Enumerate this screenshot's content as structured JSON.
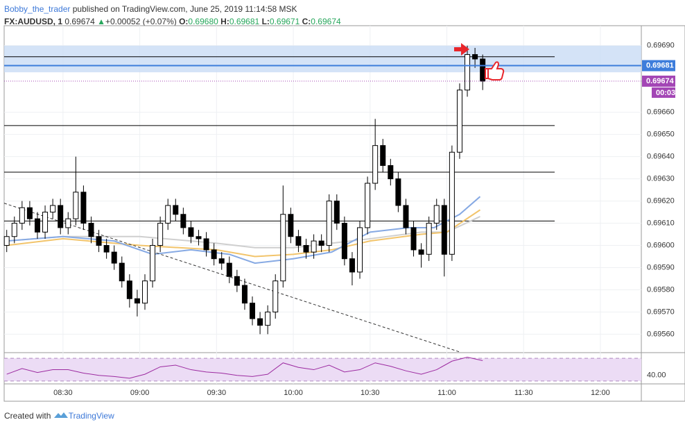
{
  "header": {
    "author": "Bobby_the_trader",
    "published": "published on TradingView.com, June 25, 2019 11:14:58 MSK",
    "symbol": "FX:AUDUSD, 1",
    "last": "0.69674",
    "change_arrow": "▲",
    "change": "+0.00052 (+0.07%)",
    "o_label": "O:",
    "o": "0.69680",
    "h_label": "H:",
    "h": "0.69681",
    "l_label": "L:",
    "l": "0.69671",
    "c_label": "C:",
    "c": "0.69674"
  },
  "footer": {
    "created": "Created with",
    "brand": "TradingView"
  },
  "chart_data": {
    "type": "candlestick",
    "xlim": [
      "08:07",
      "12:16"
    ],
    "ylim": [
      0.69552,
      0.69699
    ],
    "xticks": [
      "08:30",
      "09:00",
      "09:30",
      "10:00",
      "10:30",
      "11:00",
      "11:30",
      "12:00"
    ],
    "yticks": [
      {
        "value": 0.6956,
        "label": "0.69560"
      },
      {
        "value": 0.6957,
        "label": "0.69570"
      },
      {
        "value": 0.6958,
        "label": "0.69580"
      },
      {
        "value": 0.6959,
        "label": "0.69590"
      },
      {
        "value": 0.696,
        "label": "0.69600"
      },
      {
        "value": 0.6961,
        "label": "0.69610"
      },
      {
        "value": 0.6962,
        "label": "0.69620"
      },
      {
        "value": 0.6963,
        "label": "0.69630"
      },
      {
        "value": 0.6964,
        "label": "0.69640"
      },
      {
        "value": 0.6965,
        "label": "0.69650"
      },
      {
        "value": 0.6966,
        "label": "0.69660"
      },
      {
        "value": 0.6969,
        "label": "0.69690"
      }
    ],
    "grid": true,
    "x": [
      "08:08",
      "08:11",
      "08:14",
      "08:17",
      "08:20",
      "08:23",
      "08:26",
      "08:29",
      "08:32",
      "08:35",
      "08:38",
      "08:41",
      "08:44",
      "08:47",
      "08:50",
      "08:53",
      "08:56",
      "08:59",
      "09:02",
      "09:05",
      "09:08",
      "09:11",
      "09:14",
      "09:17",
      "09:20",
      "09:23",
      "09:26",
      "09:29",
      "09:32",
      "09:35",
      "09:38",
      "09:41",
      "09:44",
      "09:47",
      "09:50",
      "09:53",
      "09:56",
      "09:59",
      "10:02",
      "10:05",
      "10:08",
      "10:11",
      "10:14",
      "10:17",
      "10:20",
      "10:23",
      "10:26",
      "10:29",
      "10:32",
      "10:35",
      "10:38",
      "10:41",
      "10:44",
      "10:47",
      "10:50",
      "10:53",
      "10:56",
      "10:59",
      "11:02",
      "11:05",
      "11:08",
      "11:11",
      "11:14"
    ],
    "open": [
      0.696,
      0.69604,
      0.6961,
      0.69617,
      0.69612,
      0.69606,
      0.69615,
      0.69618,
      0.69608,
      0.69612,
      0.69624,
      0.6961,
      0.69604,
      0.696,
      0.69597,
      0.69592,
      0.69584,
      0.69576,
      0.69574,
      0.69584,
      0.696,
      0.6961,
      0.69618,
      0.69614,
      0.69608,
      0.69604,
      0.69603,
      0.69598,
      0.69594,
      0.69592,
      0.69586,
      0.69582,
      0.69574,
      0.69567,
      0.69564,
      0.6957,
      0.69584,
      0.69614,
      0.69604,
      0.696,
      0.69597,
      0.69602,
      0.696,
      0.6962,
      0.6961,
      0.69594,
      0.69588,
      0.69608,
      0.69628,
      0.69645,
      0.69636,
      0.6963,
      0.69618,
      0.69608,
      0.69598,
      0.69596,
      0.6961,
      0.69618,
      0.69596,
      0.69642,
      0.6967,
      0.69686,
      0.69684
    ],
    "high": [
      0.69607,
      0.69613,
      0.6962,
      0.6962,
      0.69615,
      0.69618,
      0.69621,
      0.69621,
      0.69615,
      0.6964,
      0.69627,
      0.69613,
      0.69607,
      0.69603,
      0.696,
      0.69595,
      0.69587,
      0.6958,
      0.69587,
      0.69603,
      0.69613,
      0.69621,
      0.69621,
      0.69617,
      0.69611,
      0.69607,
      0.69606,
      0.69601,
      0.69597,
      0.69595,
      0.69589,
      0.69585,
      0.69577,
      0.6957,
      0.69573,
      0.69587,
      0.69627,
      0.69617,
      0.69607,
      0.69603,
      0.69605,
      0.69605,
      0.69623,
      0.69623,
      0.69613,
      0.69597,
      0.69611,
      0.69631,
      0.69657,
      0.69648,
      0.69639,
      0.69633,
      0.69621,
      0.69611,
      0.69601,
      0.69613,
      0.69621,
      0.69621,
      0.69645,
      0.69673,
      0.6969,
      0.69689,
      0.69686
    ],
    "low": [
      0.69597,
      0.69601,
      0.69607,
      0.69609,
      0.69603,
      0.69603,
      0.69612,
      0.69605,
      0.69605,
      0.69609,
      0.69607,
      0.69601,
      0.69597,
      0.69594,
      0.69589,
      0.69581,
      0.69572,
      0.69568,
      0.69571,
      0.69581,
      0.69597,
      0.69607,
      0.69611,
      0.69605,
      0.69601,
      0.696,
      0.69595,
      0.69591,
      0.69589,
      0.69583,
      0.69579,
      0.69571,
      0.69564,
      0.6956,
      0.6956,
      0.69567,
      0.69581,
      0.69601,
      0.69597,
      0.69594,
      0.69594,
      0.69597,
      0.69597,
      0.69607,
      0.69591,
      0.69582,
      0.69585,
      0.69605,
      0.69625,
      0.69633,
      0.69627,
      0.69615,
      0.69605,
      0.69595,
      0.6959,
      0.69593,
      0.69607,
      0.69586,
      0.69593,
      0.69639,
      0.69667,
      0.6968,
      0.6967
    ],
    "close": [
      0.69604,
      0.6961,
      0.69617,
      0.69612,
      0.69606,
      0.69615,
      0.69618,
      0.69608,
      0.69612,
      0.69624,
      0.6961,
      0.69604,
      0.696,
      0.69597,
      0.69592,
      0.69584,
      0.69576,
      0.69574,
      0.69584,
      0.696,
      0.6961,
      0.69618,
      0.69614,
      0.69608,
      0.69604,
      0.69603,
      0.69598,
      0.69594,
      0.69592,
      0.69586,
      0.69582,
      0.69574,
      0.69567,
      0.69564,
      0.6957,
      0.69584,
      0.69614,
      0.69604,
      0.696,
      0.69597,
      0.69602,
      0.696,
      0.6962,
      0.6961,
      0.69594,
      0.69588,
      0.69608,
      0.69628,
      0.69645,
      0.69636,
      0.6963,
      0.69618,
      0.69608,
      0.69598,
      0.69596,
      0.6961,
      0.69618,
      0.69596,
      0.69642,
      0.6967,
      0.69686,
      0.69684,
      0.69674
    ],
    "up_color": "#ffffff",
    "down_color": "#000000",
    "wick_color": "#000000",
    "lines": [
      {
        "color": "#cfcfcf",
        "x": [
          "08:08",
          "08:30",
          "09:00",
          "09:30",
          "09:45",
          "10:00",
          "10:15",
          "10:30",
          "10:50",
          "11:00",
          "11:13"
        ],
        "values": [
          0.69602,
          0.69604,
          0.69604,
          0.69601,
          0.69599,
          0.69599,
          0.69601,
          0.69603,
          0.69606,
          0.69606,
          0.69613
        ]
      },
      {
        "color": "#f2c46b",
        "x": [
          "08:08",
          "08:30",
          "09:00",
          "09:30",
          "09:45",
          "10:00",
          "10:15",
          "10:30",
          "10:50",
          "11:00",
          "11:13"
        ],
        "values": [
          0.696,
          0.69603,
          0.696,
          0.69598,
          0.69595,
          0.69596,
          0.69598,
          0.69602,
          0.69605,
          0.69606,
          0.69616
        ]
      },
      {
        "color": "#86a9e3",
        "x": [
          "08:08",
          "08:30",
          "08:50",
          "09:05",
          "09:20",
          "09:35",
          "09:45",
          "10:00",
          "10:15",
          "10:30",
          "10:45",
          "10:55",
          "11:05",
          "11:13"
        ],
        "values": [
          0.69602,
          0.69604,
          0.69602,
          0.69596,
          0.69598,
          0.69596,
          0.69592,
          0.69594,
          0.69597,
          0.69606,
          0.69608,
          0.69608,
          0.69614,
          0.69622
        ]
      }
    ],
    "levels": [
      {
        "value": 0.69685,
        "color": "#000000"
      },
      {
        "value": 0.69654,
        "color": "#000000"
      },
      {
        "value": 0.69633,
        "color": "#000000"
      },
      {
        "value": 0.69611,
        "color": "#000000"
      }
    ],
    "zone": [
      0.69678,
      0.6969
    ],
    "trendline": {
      "x": [
        "08:07",
        "11:05"
      ],
      "values": [
        0.69619,
        0.69552
      ]
    },
    "blue_level": {
      "value": 0.69681,
      "color": "#3d7ddb"
    },
    "price_line": {
      "value": 0.69674,
      "color": "#a346b5",
      "countdown": "00:03"
    },
    "rsi": {
      "ylim": [
        25,
        80
      ],
      "band": [
        30,
        70
      ],
      "yticks": [
        {
          "value": 40,
          "label": "40.00"
        }
      ],
      "color": "#9c2aa0",
      "x": [
        "08:08",
        "08:14",
        "08:20",
        "08:26",
        "08:32",
        "08:38",
        "08:44",
        "08:50",
        "08:56",
        "09:02",
        "09:08",
        "09:14",
        "09:20",
        "09:26",
        "09:32",
        "09:38",
        "09:44",
        "09:50",
        "09:56",
        "10:02",
        "10:08",
        "10:14",
        "10:20",
        "10:26",
        "10:32",
        "10:38",
        "10:44",
        "10:50",
        "10:56",
        "11:02",
        "11:08",
        "11:14"
      ],
      "values": [
        42,
        52,
        45,
        50,
        50,
        44,
        40,
        38,
        35,
        42,
        55,
        58,
        50,
        46,
        44,
        40,
        38,
        42,
        62,
        54,
        50,
        58,
        46,
        50,
        62,
        56,
        48,
        42,
        50,
        65,
        72,
        66
      ]
    }
  }
}
